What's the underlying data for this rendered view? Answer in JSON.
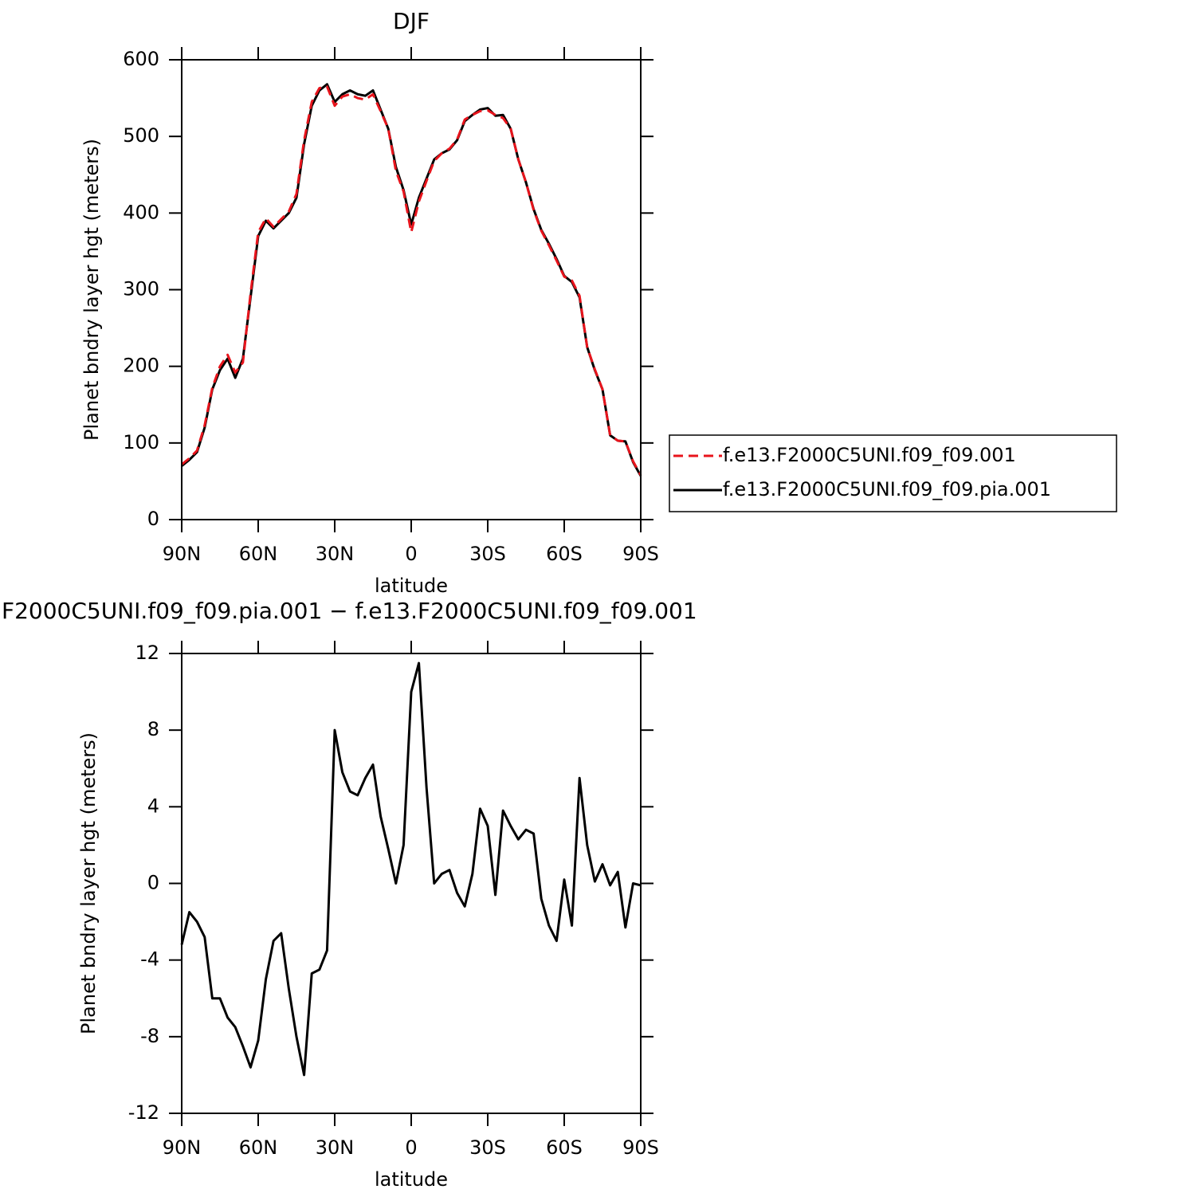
{
  "chart_data": [
    {
      "type": "line",
      "title": "DJF",
      "xlabel": "latitude",
      "ylabel": "Planet bndry layer hgt (meters)",
      "x": [
        90,
        87,
        84,
        81,
        78,
        75,
        72,
        69,
        66,
        63,
        60,
        57,
        54,
        51,
        48,
        45,
        42,
        39,
        36,
        33,
        30,
        27,
        24,
        21,
        18,
        15,
        12,
        9,
        6,
        3,
        0,
        -3,
        -6,
        -9,
        -12,
        -15,
        -18,
        -21,
        -24,
        -27,
        -30,
        -33,
        -36,
        -39,
        -42,
        -45,
        -48,
        -51,
        -54,
        -57,
        -60,
        -63,
        -66,
        -69,
        -72,
        -75,
        -78,
        -81,
        -84,
        -87,
        -90
      ],
      "series": [
        {
          "name": "f.e13.F2000C5UNI.f09_f09.001",
          "color": "#e8141c",
          "dash": true,
          "values": [
            72,
            80,
            90,
            123,
            172,
            200,
            215,
            192,
            205,
            295,
            375,
            393,
            382,
            392,
            402,
            425,
            495,
            545,
            563,
            565,
            540,
            552,
            555,
            550,
            548,
            555,
            533,
            510,
            455,
            428,
            375,
            415,
            442,
            468,
            478,
            484,
            496,
            522,
            528,
            533,
            534,
            528,
            524,
            510,
            470,
            440,
            404,
            377,
            358,
            338,
            317,
            312,
            292,
            225,
            196,
            170,
            110,
            103,
            102,
            76,
            58
          ]
        },
        {
          "name": "f.e13.F2000C5UNI.f09_f09.pia.001",
          "color": "#000000",
          "dash": false,
          "values": [
            70,
            78,
            88,
            120,
            170,
            195,
            210,
            185,
            210,
            290,
            370,
            390,
            380,
            390,
            400,
            420,
            490,
            540,
            560,
            568,
            545,
            555,
            560,
            555,
            553,
            560,
            535,
            510,
            460,
            430,
            385,
            420,
            445,
            470,
            478,
            483,
            495,
            520,
            528,
            535,
            537,
            527,
            528,
            510,
            470,
            440,
            405,
            378,
            360,
            340,
            318,
            310,
            290,
            225,
            195,
            170,
            110,
            103,
            102,
            75,
            57
          ]
        }
      ],
      "xlim": [
        90,
        -90
      ],
      "xticks": [
        {
          "value": 90,
          "label": "90N"
        },
        {
          "value": 60,
          "label": "60N"
        },
        {
          "value": 30,
          "label": "30N"
        },
        0,
        {
          "value": -30,
          "label": "30S"
        },
        {
          "value": -60,
          "label": "60S"
        },
        {
          "value": -90,
          "label": "90S"
        }
      ],
      "ylim": [
        0,
        600
      ],
      "yticks": [
        0,
        100,
        200,
        300,
        400,
        500,
        600
      ],
      "legend": "right"
    },
    {
      "type": "line",
      "title": "F2000C5UNI.f09_f09.pia.001 − f.e13.F2000C5UNI.f09_f09.001",
      "xlabel": "latitude",
      "ylabel": "Planet bndry layer hgt (meters)",
      "x": [
        90,
        87,
        84,
        81,
        78,
        75,
        72,
        69,
        66,
        63,
        60,
        57,
        54,
        51,
        48,
        45,
        42,
        39,
        36,
        33,
        30,
        27,
        24,
        21,
        18,
        15,
        12,
        9,
        6,
        3,
        0,
        -3,
        -6,
        -9,
        -12,
        -15,
        -18,
        -21,
        -24,
        -27,
        -30,
        -33,
        -36,
        -39,
        -42,
        -45,
        -48,
        -51,
        -54,
        -57,
        -60,
        -63,
        -66,
        -69,
        -72,
        -75,
        -78,
        -81,
        -84,
        -87,
        -90
      ],
      "series": [
        {
          "color": "#000000",
          "dash": false,
          "values": [
            -3.2,
            -1.5,
            -2,
            -2.8,
            -6,
            -6,
            -7,
            -7.5,
            -8.5,
            -9.6,
            -8.2,
            -5,
            -3,
            -2.6,
            -5.5,
            -8,
            -10,
            -4.7,
            -4.5,
            -3.5,
            8,
            5.8,
            4.8,
            4.6,
            5.5,
            6.2,
            3.5,
            1.8,
            0,
            2,
            10,
            11.5,
            5,
            0,
            0.5,
            0.7,
            -0.5,
            -1.2,
            0.5,
            3.9,
            3,
            -0.6,
            3.8,
            3,
            2.3,
            2.8,
            2.6,
            -0.8,
            -2.2,
            -3,
            0.2,
            -2.2,
            5.5,
            2,
            0.1,
            1,
            -0.1,
            0.6,
            -2.3,
            0,
            -0.1
          ]
        }
      ],
      "xlim": [
        90,
        -90
      ],
      "xticks": [
        {
          "value": 90,
          "label": "90N"
        },
        {
          "value": 60,
          "label": "60N"
        },
        {
          "value": 30,
          "label": "30N"
        },
        0,
        {
          "value": -30,
          "label": "30S"
        },
        {
          "value": -60,
          "label": "60S"
        },
        {
          "value": -90,
          "label": "90S"
        }
      ],
      "ylim": [
        -12,
        12
      ],
      "yticks": [
        -12,
        -8,
        -4,
        0,
        4,
        8,
        12
      ]
    }
  ]
}
